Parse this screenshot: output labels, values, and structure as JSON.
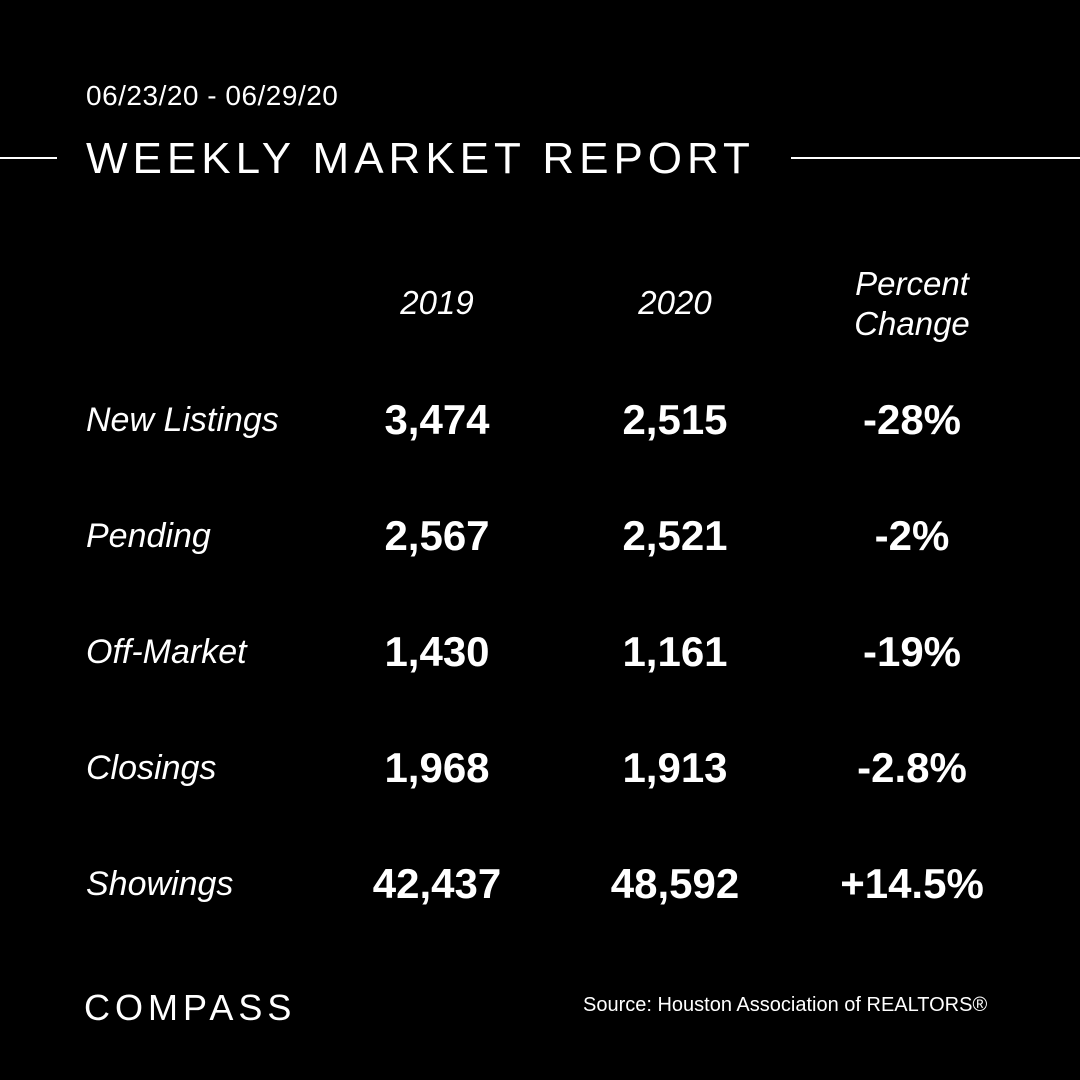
{
  "header": {
    "date_range": "06/23/20 - 06/29/20",
    "title": "WEEKLY MARKET REPORT"
  },
  "table": {
    "columns": [
      "2019",
      "2020",
      "Percent",
      "Change"
    ],
    "rows": [
      {
        "label": "New Listings",
        "v2019": "3,474",
        "v2020": "2,515",
        "change": "-28%"
      },
      {
        "label": "Pending",
        "v2019": "2,567",
        "v2020": "2,521",
        "change": "-2%"
      },
      {
        "label": "Off-Market",
        "v2019": "1,430",
        "v2020": "1,161",
        "change": "-19%"
      },
      {
        "label": "Closings",
        "v2019": "1,968",
        "v2020": "1,913",
        "change": "-2.8%"
      },
      {
        "label": "Showings",
        "v2019": "42,437",
        "v2020": "48,592",
        "change": "+14.5%"
      }
    ]
  },
  "footer": {
    "logo_text": "COMPASS",
    "source": "Source: Houston Association of REALTORS®"
  },
  "colors": {
    "background": "#000000",
    "text": "#ffffff"
  }
}
